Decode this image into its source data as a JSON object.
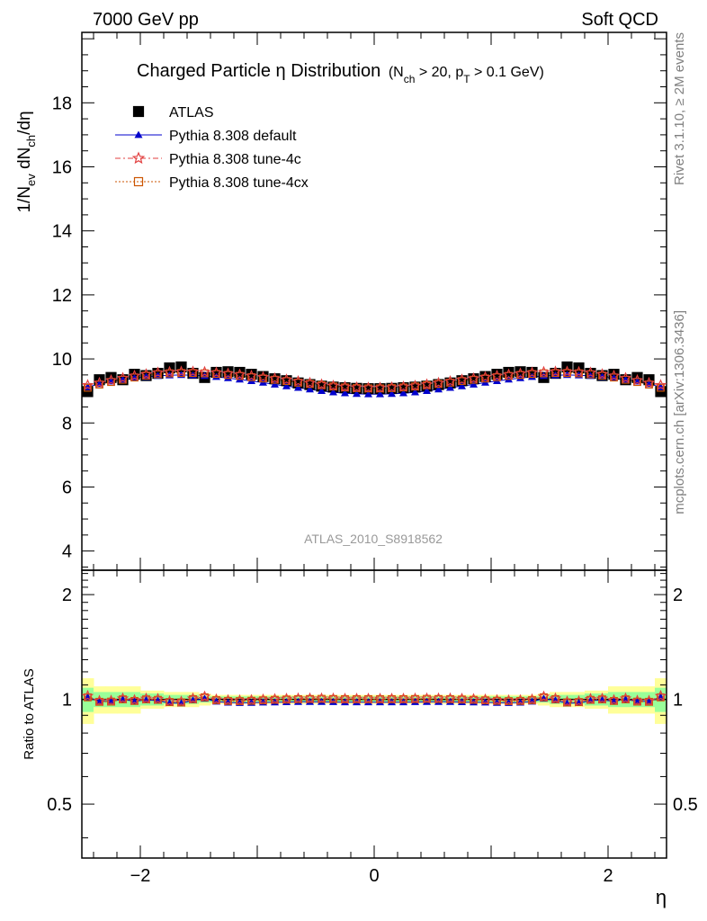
{
  "header": {
    "left": "7000 GeV pp",
    "right": "Soft QCD"
  },
  "side_text": {
    "top": "Rivet 3.1.10, ≥ 2M events",
    "bottom": "mcplots.cern.ch [arXiv:1306.3436]"
  },
  "title": {
    "main": "Charged Particle η Distribution",
    "cuts_parts": [
      "(N",
      "ch",
      " > 20, p",
      "T",
      " > 0.1 GeV)"
    ]
  },
  "analysis_label": "ATLAS_2010_S8918562",
  "axes": {
    "y_label_parts": [
      "1/N",
      "ev",
      " dN",
      "ch",
      "/dη"
    ],
    "ratio_label": "Ratio to ATLAS",
    "x_label": "η",
    "x_ticks": [
      {
        "v": -2,
        "label": "−2"
      },
      {
        "v": 0,
        "label": "0"
      },
      {
        "v": 2,
        "label": "2"
      }
    ],
    "y_ticks": [
      {
        "v": 4,
        "label": "4"
      },
      {
        "v": 6,
        "label": "6"
      },
      {
        "v": 8,
        "label": "8"
      },
      {
        "v": 10,
        "label": "10"
      },
      {
        "v": 12,
        "label": "12"
      },
      {
        "v": 14,
        "label": "14"
      },
      {
        "v": 16,
        "label": "16"
      },
      {
        "v": 18,
        "label": "18"
      }
    ],
    "ratio_ticks": [
      {
        "v": 0.5,
        "label": "0.5"
      },
      {
        "v": 1,
        "label": "1"
      },
      {
        "v": 2,
        "label": "2"
      }
    ]
  },
  "colors": {
    "atlas": "#000000",
    "default": "#0000cc",
    "tune4c": "#e23f3f",
    "tune4cx": "#cc5500",
    "band_inner": "#99ff99",
    "band_outer": "#ffff99"
  },
  "chart_data": {
    "type": "scatter",
    "xlim": [
      -2.5,
      2.5
    ],
    "ylim": [
      3.4,
      20.2
    ],
    "ratio_ylim": [
      0.35,
      2.35
    ],
    "ratio_log_scale": true,
    "x": [
      -2.45,
      -2.35,
      -2.25,
      -2.15,
      -2.05,
      -1.95,
      -1.85,
      -1.75,
      -1.65,
      -1.55,
      -1.45,
      -1.35,
      -1.25,
      -1.15,
      -1.05,
      -0.95,
      -0.85,
      -0.75,
      -0.65,
      -0.55,
      -0.45,
      -0.35,
      -0.25,
      -0.15,
      -0.05,
      0.05,
      0.15,
      0.25,
      0.35,
      0.45,
      0.55,
      0.65,
      0.75,
      0.85,
      0.95,
      1.05,
      1.15,
      1.25,
      1.35,
      1.45,
      1.55,
      1.65,
      1.75,
      1.85,
      1.95,
      2.05,
      2.15,
      2.25,
      2.35,
      2.45
    ],
    "band_inner_halfwidth": [
      0.08,
      0.05,
      0.05,
      0.05,
      0.05,
      0.04,
      0.04,
      0.03,
      0.03,
      0.03,
      0.02,
      0.02,
      0.02,
      0.02,
      0.02,
      0.02,
      0.02,
      0.02,
      0.02,
      0.02,
      0.02,
      0.02,
      0.02,
      0.02,
      0.02,
      0.02,
      0.02,
      0.02,
      0.02,
      0.02,
      0.02,
      0.02,
      0.02,
      0.02,
      0.02,
      0.02,
      0.02,
      0.02,
      0.02,
      0.02,
      0.03,
      0.03,
      0.03,
      0.04,
      0.04,
      0.05,
      0.05,
      0.05,
      0.05,
      0.08
    ],
    "band_outer_halfwidth": [
      0.15,
      0.09,
      0.09,
      0.09,
      0.09,
      0.06,
      0.06,
      0.05,
      0.05,
      0.05,
      0.04,
      0.03,
      0.03,
      0.03,
      0.03,
      0.03,
      0.03,
      0.03,
      0.03,
      0.03,
      0.03,
      0.03,
      0.03,
      0.03,
      0.03,
      0.03,
      0.03,
      0.03,
      0.03,
      0.03,
      0.03,
      0.03,
      0.03,
      0.03,
      0.03,
      0.03,
      0.03,
      0.03,
      0.03,
      0.04,
      0.05,
      0.05,
      0.05,
      0.06,
      0.06,
      0.09,
      0.09,
      0.09,
      0.09,
      0.15
    ],
    "series": [
      {
        "name": "ATLAS",
        "marker": "square",
        "values": [
          8.98,
          9.35,
          9.42,
          9.35,
          9.52,
          9.48,
          9.55,
          9.72,
          9.75,
          9.55,
          9.42,
          9.58,
          9.6,
          9.58,
          9.52,
          9.45,
          9.38,
          9.32,
          9.25,
          9.2,
          9.15,
          9.12,
          9.1,
          9.08,
          9.07,
          9.07,
          9.08,
          9.1,
          9.12,
          9.15,
          9.2,
          9.25,
          9.32,
          9.38,
          9.45,
          9.52,
          9.58,
          9.6,
          9.58,
          9.42,
          9.55,
          9.75,
          9.72,
          9.55,
          9.48,
          9.52,
          9.35,
          9.42,
          9.35,
          8.98
        ]
      },
      {
        "name": "Pythia 8.308 default",
        "marker": "triangle",
        "values": [
          9.12,
          9.22,
          9.3,
          9.35,
          9.4,
          9.44,
          9.47,
          9.49,
          9.5,
          9.49,
          9.47,
          9.44,
          9.4,
          9.36,
          9.31,
          9.26,
          9.2,
          9.15,
          9.1,
          9.05,
          9.0,
          8.96,
          8.93,
          8.91,
          8.9,
          8.9,
          8.91,
          8.93,
          8.96,
          9.0,
          9.05,
          9.1,
          9.15,
          9.2,
          9.26,
          9.31,
          9.36,
          9.4,
          9.44,
          9.47,
          9.49,
          9.5,
          9.49,
          9.47,
          9.44,
          9.4,
          9.35,
          9.3,
          9.22,
          9.12
        ]
      },
      {
        "name": "Pythia 8.308 tune-4c",
        "marker": "star",
        "values": [
          9.18,
          9.25,
          9.33,
          9.4,
          9.47,
          9.52,
          9.57,
          9.59,
          9.6,
          9.6,
          9.59,
          9.57,
          9.54,
          9.51,
          9.47,
          9.43,
          9.39,
          9.35,
          9.3,
          9.25,
          9.2,
          9.16,
          9.13,
          9.11,
          9.1,
          9.1,
          9.11,
          9.13,
          9.16,
          9.2,
          9.25,
          9.3,
          9.35,
          9.39,
          9.43,
          9.47,
          9.51,
          9.54,
          9.57,
          9.59,
          9.6,
          9.6,
          9.59,
          9.57,
          9.52,
          9.47,
          9.4,
          9.33,
          9.25,
          9.18
        ]
      },
      {
        "name": "Pythia 8.308 tune-4cx",
        "marker": "open-square",
        "values": [
          9.1,
          9.2,
          9.28,
          9.35,
          9.42,
          9.48,
          9.52,
          9.55,
          9.56,
          9.56,
          9.55,
          9.53,
          9.5,
          9.47,
          9.43,
          9.39,
          9.35,
          9.31,
          9.26,
          9.22,
          9.18,
          9.14,
          9.11,
          9.09,
          9.08,
          9.08,
          9.09,
          9.11,
          9.14,
          9.18,
          9.22,
          9.26,
          9.31,
          9.35,
          9.39,
          9.43,
          9.47,
          9.5,
          9.53,
          9.55,
          9.56,
          9.56,
          9.55,
          9.52,
          9.48,
          9.42,
          9.35,
          9.28,
          9.2,
          9.1
        ]
      }
    ]
  }
}
